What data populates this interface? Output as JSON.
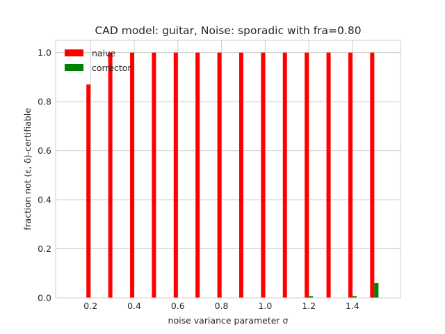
{
  "chart_data": {
    "type": "bar",
    "title": "CAD model: guitar, Noise: sporadic with fra=0.80",
    "xlabel": "noise variance parameter σ",
    "ylabel": "fraction not (ε, δ)-certifiable",
    "x": [
      0.2,
      0.3,
      0.4,
      0.5,
      0.6,
      0.7,
      0.8,
      0.9,
      1.0,
      1.1,
      1.2,
      1.3,
      1.4,
      1.5
    ],
    "xticks": [
      "0.2",
      "0.4",
      "0.6",
      "0.8",
      "1.0",
      "1.2",
      "1.4"
    ],
    "xtick_values": [
      0.2,
      0.4,
      0.6,
      0.8,
      1.0,
      1.2,
      1.4
    ],
    "yticks": [
      "0.0",
      "0.2",
      "0.4",
      "0.6",
      "0.8",
      "1.0"
    ],
    "ytick_values": [
      0.0,
      0.2,
      0.4,
      0.6,
      0.8,
      1.0
    ],
    "xlim": [
      0.04,
      1.62
    ],
    "ylim": [
      0.0,
      1.05
    ],
    "grid": true,
    "legend_position": "top-left",
    "series": [
      {
        "name": "naive",
        "color": "#ff0000",
        "values": [
          0.87,
          1.0,
          1.0,
          1.0,
          1.0,
          1.0,
          1.0,
          1.0,
          1.0,
          1.0,
          1.0,
          1.0,
          1.0,
          1.0
        ]
      },
      {
        "name": "corrector",
        "color": "#008000",
        "values": [
          0,
          0,
          0,
          0,
          0,
          0,
          0,
          0,
          0,
          0,
          0.007,
          0,
          0.007,
          0.06
        ]
      }
    ]
  }
}
